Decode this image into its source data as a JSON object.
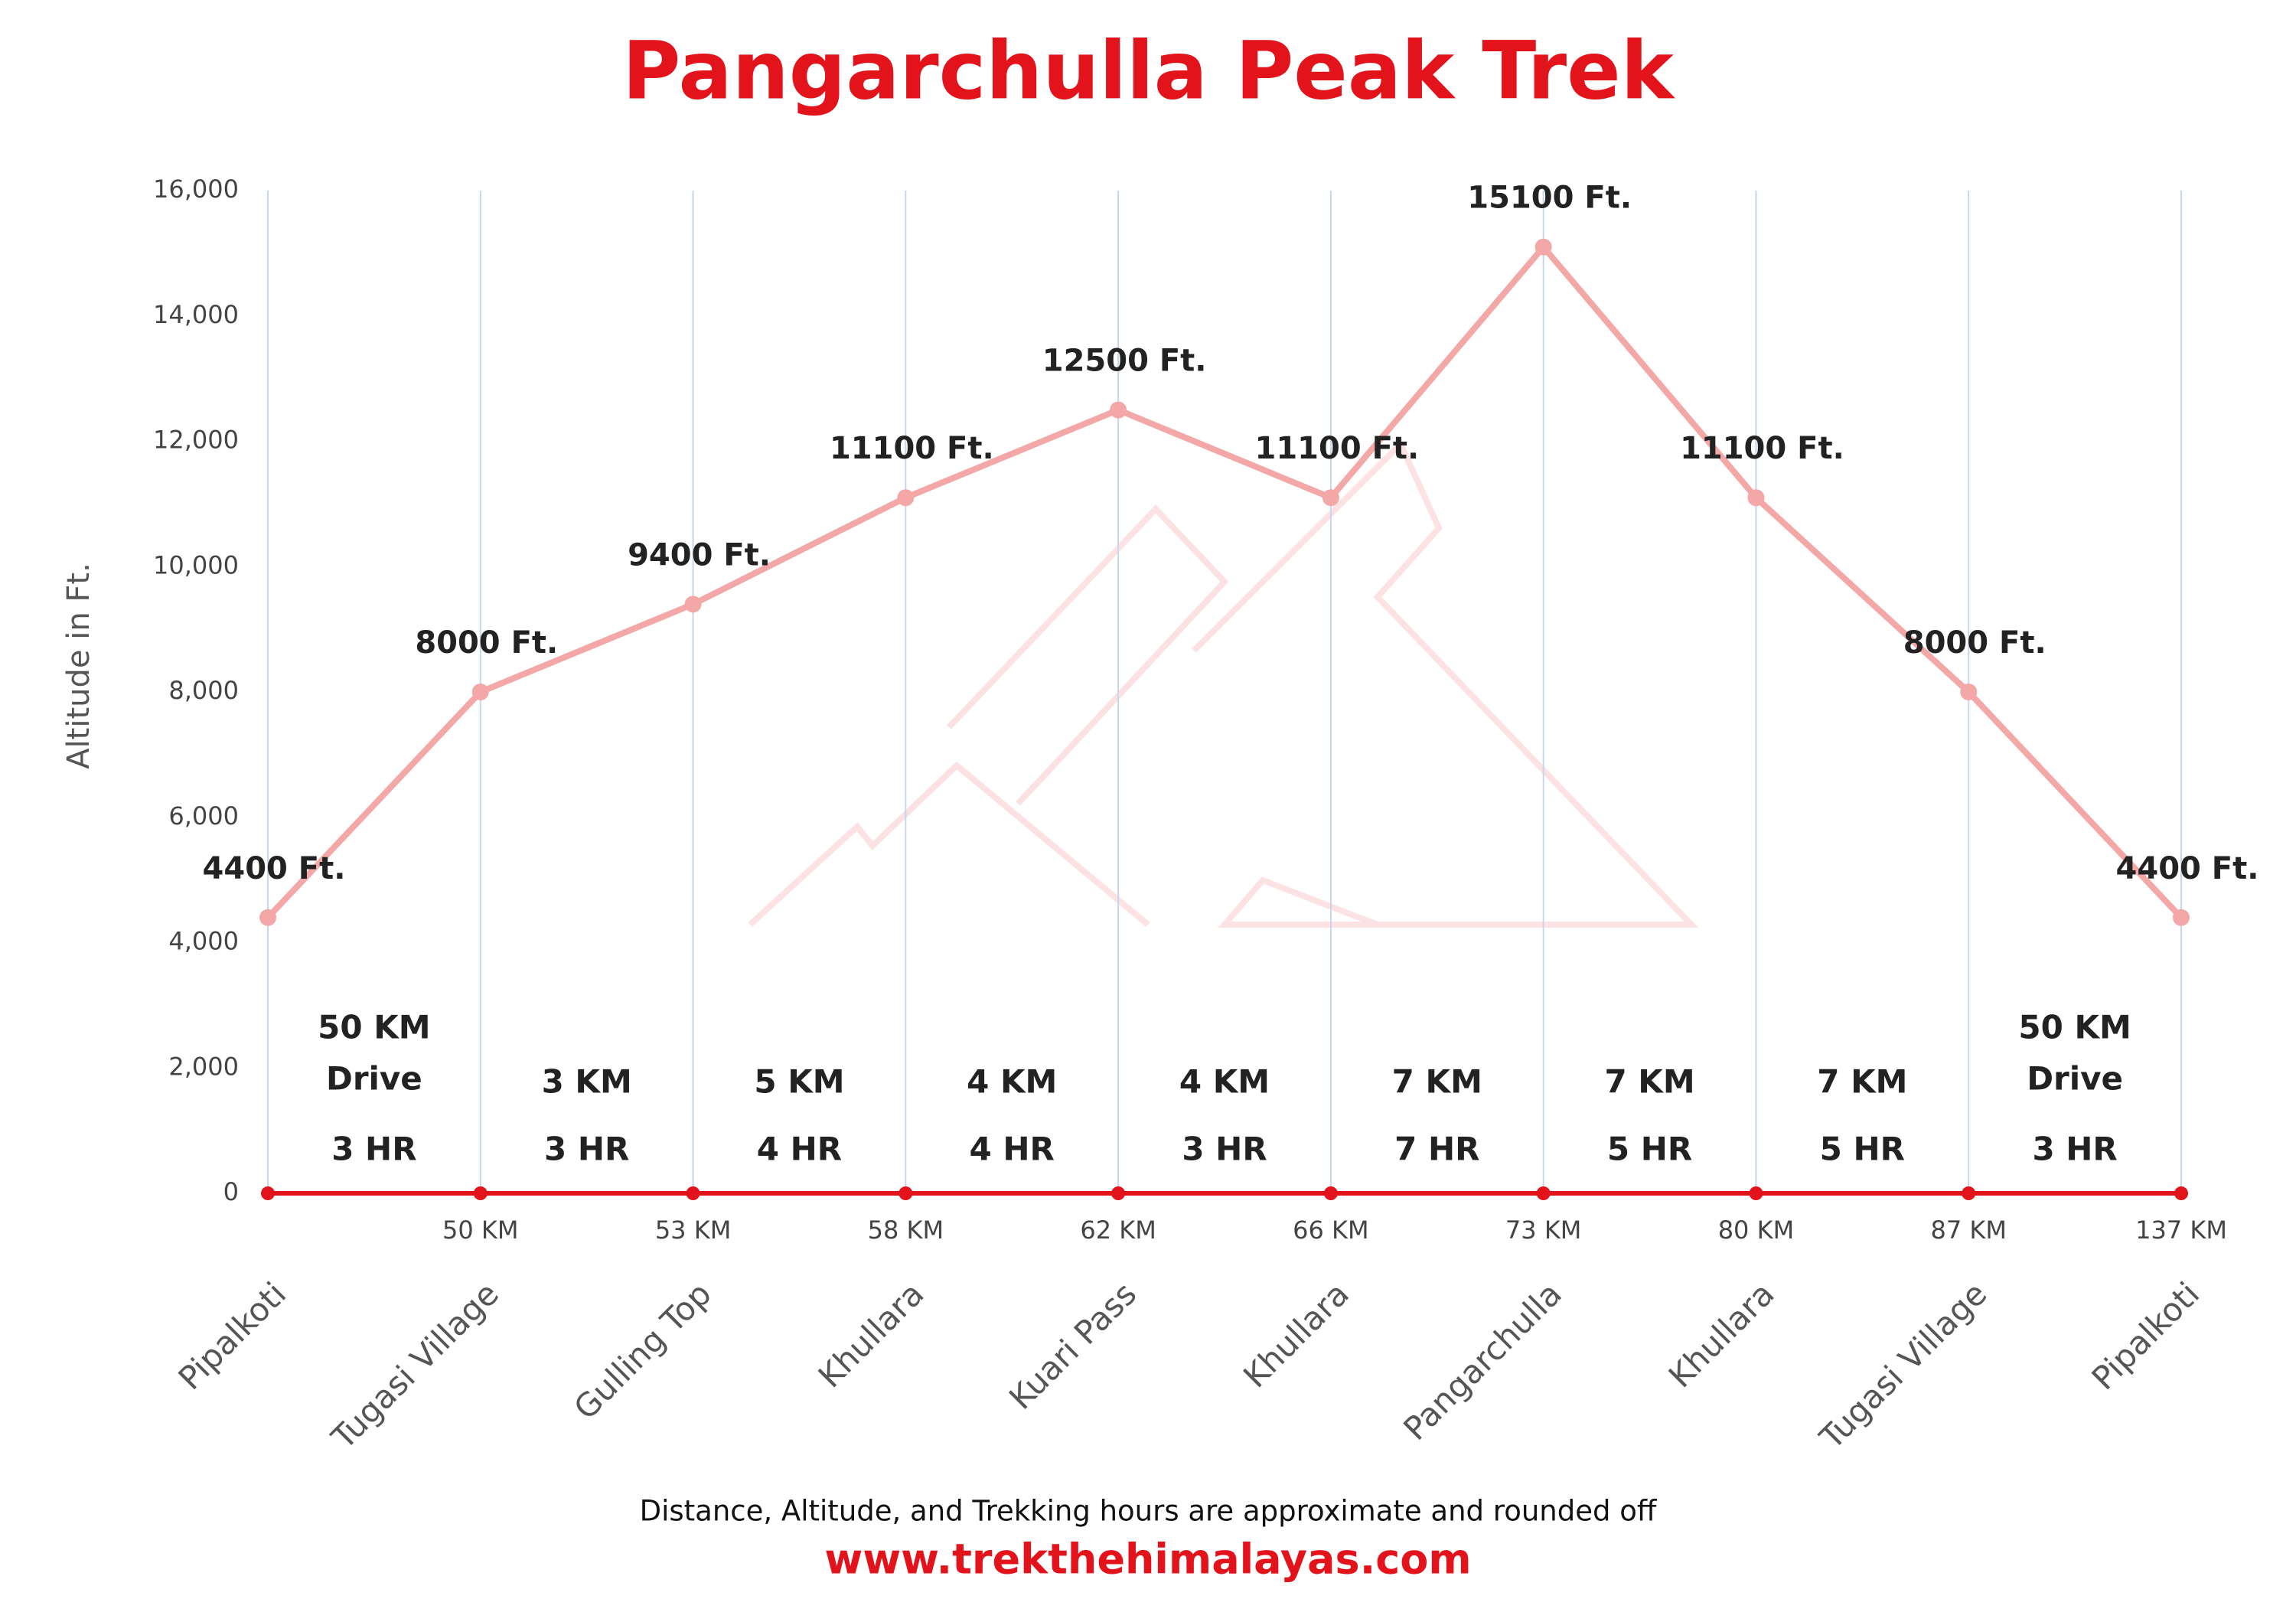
{
  "chart_data": {
    "type": "line",
    "title": "Pangarchulla Peak Trek",
    "y_label": "Altitude in Ft.",
    "categories": [
      "Pipalkoti",
      "Tugasi Village",
      "Gulling Top",
      "Khullara",
      "Kuari Pass",
      "Khullara",
      "Pangarchulla",
      "Khullara",
      "Tugasi Village",
      "Pipalkoti"
    ],
    "values": [
      4400,
      8000,
      9400,
      11100,
      12500,
      11100,
      15100,
      11100,
      8000,
      4400
    ],
    "value_labels": [
      "4400 Ft.",
      "8000 Ft.",
      "9400 Ft.",
      "11100 Ft.",
      "12500 Ft.",
      "11100 Ft.",
      "15100 Ft.",
      "11100 Ft.",
      "8000 Ft.",
      "4400 Ft."
    ],
    "distance_labels": [
      null,
      "50 KM",
      "53 KM",
      "58 KM",
      "62 KM",
      "66 KM",
      "73 KM",
      "80 KM",
      "87 KM",
      "137 KM"
    ],
    "segment_labels": [
      [
        "50  KM",
        "Drive",
        "3 HR"
      ],
      [
        "3 KM",
        "3 HR"
      ],
      [
        "5 KM",
        "4 HR"
      ],
      [
        "4 KM",
        "4 HR"
      ],
      [
        "4 KM",
        "3 HR"
      ],
      [
        "7 KM",
        "7 HR"
      ],
      [
        "7 KM",
        "5 HR"
      ],
      [
        "7 KM",
        "5 HR"
      ],
      [
        "50  KM",
        "Drive",
        "3 HR"
      ]
    ],
    "color": "#f4a7a7",
    "axis_color": "#e3131b",
    "ylim": [
      0,
      16000
    ],
    "yticks": [
      0,
      {
        "value": 2000,
        "label": "2,000"
      },
      {
        "value": 4000,
        "label": "4,000"
      },
      {
        "value": 6000,
        "label": "6,000"
      },
      {
        "value": 8000,
        "label": "8,000"
      },
      {
        "value": 10000,
        "label": "10,000"
      },
      {
        "value": 12000,
        "label": "12,000"
      },
      {
        "value": 14000,
        "label": "14,000"
      },
      {
        "value": 16000,
        "label": "16,000"
      }
    ],
    "footnote": "Distance, Altitude,  and Trekking hours are approximate and rounded  off",
    "website": "www.trekthehimalayas.com"
  }
}
